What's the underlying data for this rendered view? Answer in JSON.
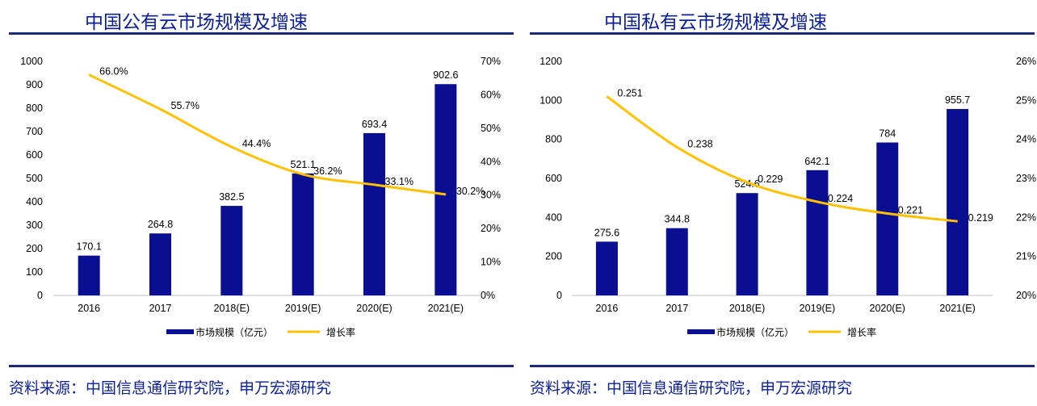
{
  "colors": {
    "bar": "#0a0f91",
    "line": "#ffc000",
    "title": "#0b1f9c",
    "rule": "#1a2a78"
  },
  "panels": [
    {
      "title": "中国公有云市场规模及增速",
      "source": "资料来源：中国信息通信研究院，申万宏源研究",
      "chart_data": {
        "type": "bar",
        "title": "中国公有云市场规模及增速",
        "categories": [
          "2016",
          "2017",
          "2018(E)",
          "2019(E)",
          "2020(E)",
          "2021(E)"
        ],
        "series": [
          {
            "name": "市场规模（亿元）",
            "type": "bar",
            "axis": "left",
            "values": [
              170.1,
              264.8,
              382.5,
              521.1,
              693.4,
              902.6
            ],
            "labels": [
              "170.1",
              "264.8",
              "382.5",
              "521.1",
              "693.4",
              "902.6"
            ]
          },
          {
            "name": "增长率",
            "type": "line",
            "axis": "right",
            "values": [
              0.66,
              0.557,
              0.444,
              0.362,
              0.331,
              0.302
            ],
            "labels": [
              "66.0%",
              "55.7%",
              "44.4%",
              "36.2%",
              "33.1%",
              "30.2%"
            ]
          }
        ],
        "left_axis": {
          "ylim": [
            0,
            1000
          ],
          "ticks": [
            "0",
            "100",
            "200",
            "300",
            "400",
            "500",
            "600",
            "700",
            "800",
            "900",
            "1000"
          ]
        },
        "right_axis": {
          "ylim": [
            0,
            0.7
          ],
          "ticks": [
            "0%",
            "10%",
            "20%",
            "30%",
            "40%",
            "50%",
            "60%",
            "70%"
          ]
        },
        "legend": {
          "position": "bottom",
          "bar_label": "市场规模（亿元）",
          "line_label": "增长率"
        },
        "grid": false
      }
    },
    {
      "title": "中国私有云市场规模及增速",
      "source": "资料来源：中国信息通信研究院，申万宏源研究",
      "chart_data": {
        "type": "bar",
        "title": "中国私有云市场规模及增速",
        "categories": [
          "2016",
          "2017",
          "2018(E)",
          "2019(E)",
          "2020(E)",
          "2021(E)"
        ],
        "series": [
          {
            "name": "市场规模（亿元）",
            "type": "bar",
            "axis": "left",
            "values": [
              275.6,
              344.8,
              524.6,
              642.1,
              784,
              955.7
            ],
            "labels": [
              "275.6",
              "344.8",
              "524.6",
              "642.1",
              "784",
              "955.7"
            ]
          },
          {
            "name": "增长率",
            "type": "line",
            "axis": "right",
            "values": [
              0.251,
              0.238,
              0.229,
              0.224,
              0.221,
              0.219
            ],
            "labels": [
              "0.251",
              "0.238",
              "0.229",
              "0.224",
              "0.221",
              "0.219"
            ]
          }
        ],
        "left_axis": {
          "ylim": [
            0,
            1200
          ],
          "ticks": [
            "0",
            "200",
            "400",
            "600",
            "800",
            "1000",
            "1200"
          ]
        },
        "right_axis": {
          "ylim": [
            0.2,
            0.26
          ],
          "ticks": [
            "20%",
            "21%",
            "22%",
            "23%",
            "24%",
            "25%",
            "26%"
          ]
        },
        "legend": {
          "position": "bottom",
          "bar_label": "市场规模（亿元）",
          "line_label": "增长率"
        },
        "grid": false
      }
    }
  ]
}
